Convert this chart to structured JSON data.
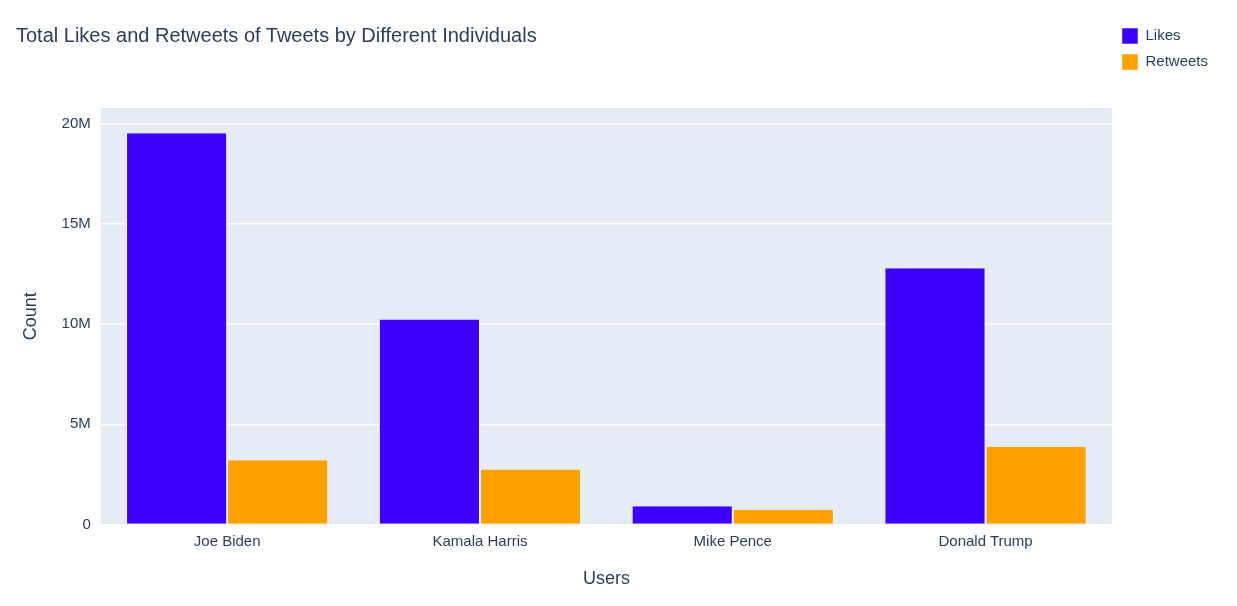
{
  "chart_data": {
    "type": "bar",
    "title": "Total Likes and Retweets of Tweets by Different Individuals",
    "xlabel": "Users",
    "ylabel": "Count",
    "categories": [
      "Joe Biden",
      "Kamala Harris",
      "Mike Pence",
      "Donald Trump"
    ],
    "series": [
      {
        "name": "Likes",
        "color": "#3c00ff",
        "values": [
          19540000,
          10230000,
          910000,
          12790000
        ]
      },
      {
        "name": "Retweets",
        "color": "#ffa000",
        "values": [
          3200000,
          2740000,
          730000,
          3880000
        ]
      }
    ],
    "ylim": [
      0,
      20800000
    ],
    "yticks": [
      {
        "value": 0,
        "label": "0"
      },
      {
        "value": 5000000,
        "label": "5M"
      },
      {
        "value": 10000000,
        "label": "10M"
      },
      {
        "value": 15000000,
        "label": "15M"
      },
      {
        "value": 20000000,
        "label": "20M"
      }
    ],
    "grid": "y",
    "legend": "top right"
  }
}
